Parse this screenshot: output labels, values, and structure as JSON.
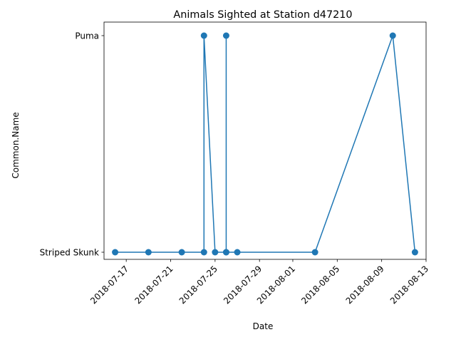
{
  "chart_data": {
    "type": "line",
    "title": "Animals Sighted at Station d47210",
    "xlabel": "Date",
    "ylabel": "Common.Name",
    "y_categories": [
      "Striped Skunk",
      "Puma"
    ],
    "x_ticks": [
      "2018-07-17",
      "2018-07-21",
      "2018-07-25",
      "2018-07-29",
      "2018-08-01",
      "2018-08-05",
      "2018-08-09",
      "2018-08-13"
    ],
    "x_range": [
      "2018-07-15",
      "2018-08-13"
    ],
    "grid": false,
    "line_color": "#1f77b4",
    "points": [
      {
        "x": "2018-07-16",
        "y": "Striped Skunk"
      },
      {
        "x": "2018-07-19",
        "y": "Striped Skunk"
      },
      {
        "x": "2018-07-22",
        "y": "Striped Skunk"
      },
      {
        "x": "2018-07-24",
        "y": "Striped Skunk"
      },
      {
        "x": "2018-07-24",
        "y": "Puma"
      },
      {
        "x": "2018-07-25",
        "y": "Striped Skunk"
      },
      {
        "x": "2018-07-26",
        "y": "Striped Skunk"
      },
      {
        "x": "2018-07-26",
        "y": "Puma"
      },
      {
        "x": "2018-07-26",
        "y": "Striped Skunk"
      },
      {
        "x": "2018-07-27",
        "y": "Striped Skunk"
      },
      {
        "x": "2018-08-03",
        "y": "Striped Skunk"
      },
      {
        "x": "2018-08-10",
        "y": "Puma"
      },
      {
        "x": "2018-08-12",
        "y": "Striped Skunk"
      }
    ]
  }
}
